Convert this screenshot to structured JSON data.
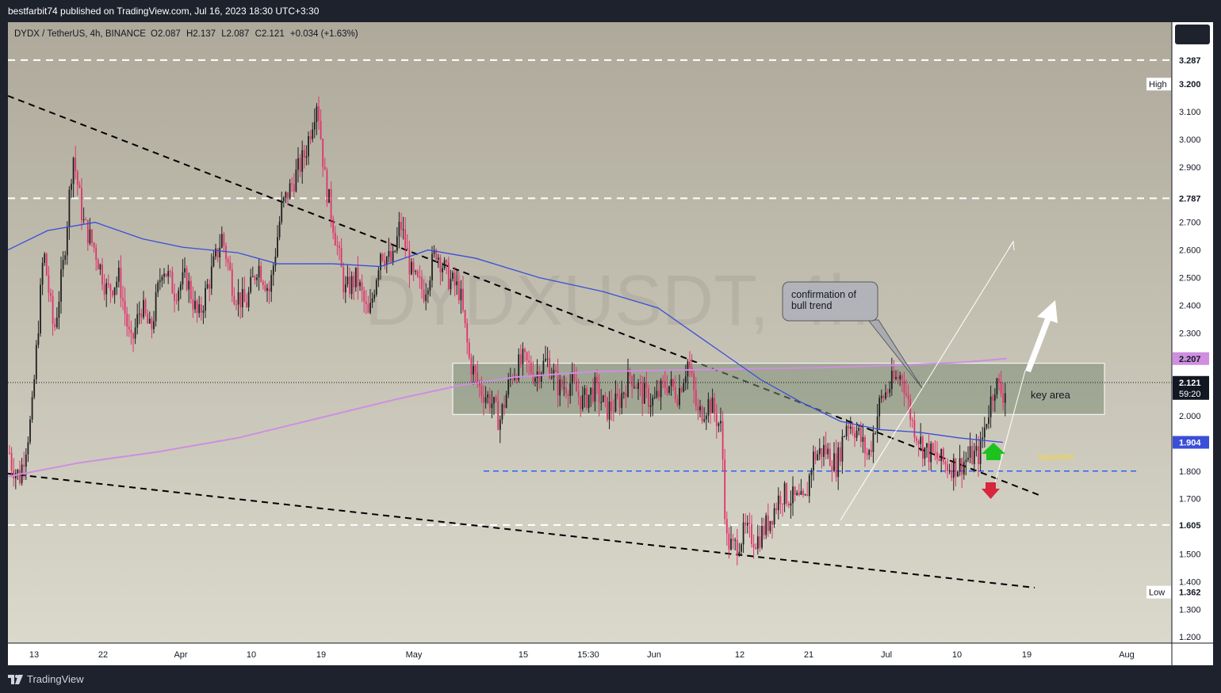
{
  "header": {
    "published": "bestfarbit74 published on TradingView.com, Jul 16, 2023 18:30 UTC+3:30"
  },
  "footer": {
    "brand": "TradingView"
  },
  "colors": {
    "background_top": "#aea99a",
    "background_bottom": "#dad9cc",
    "up_candle": "#1f1f1f",
    "down_candle": "#e0336b",
    "ma_fast": "#3a4ed8",
    "ma_slow": "#cf8ee0",
    "key_area_fill": "#7d8e77",
    "baseline": "#2962ff",
    "current_price": "#131722",
    "arrow_up": "#1ec21e",
    "arrow_down": "#d7263d"
  },
  "chart_data": {
    "type": "candlestick",
    "title": "DYDX / TetherUS, 4h, BINANCE",
    "watermark": "DYDXUSDT, 4h",
    "ohlc_readout": {
      "o_label": "O",
      "open": "2.087",
      "h_label": "H",
      "high": "2.137",
      "l_label": "L",
      "low": "2.087",
      "c_label": "C",
      "close": "2.121",
      "change": "+0.034 (+1.63%)"
    },
    "x_axis_ticks": [
      "13",
      "22",
      "Apr",
      "10",
      "19",
      "May",
      "15",
      "15:30",
      "Jun",
      "12",
      "21",
      "Jul",
      "10",
      "19",
      "Aug"
    ],
    "y_axis_ticks": [
      "3.100",
      "3.000",
      "2.900",
      "2.700",
      "2.600",
      "2.500",
      "2.400",
      "2.300",
      "2.000",
      "1.800",
      "1.700",
      "1.500",
      "1.400",
      "1.300",
      "1.200"
    ],
    "y_range": [
      1.16,
      3.36
    ],
    "price_levels": [
      {
        "value": 3.287,
        "label": "3.287"
      },
      {
        "value": 2.787,
        "label": "2.787"
      },
      {
        "value": 1.605,
        "label": "1.605"
      }
    ],
    "high_marker": {
      "prefix": "High",
      "value": 3.2,
      "label": "3.200"
    },
    "low_marker": {
      "prefix": "Low",
      "value": 1.362,
      "label": "1.362"
    },
    "ma_slow_value": {
      "value": 2.207,
      "label": "2.207"
    },
    "ma_fast_value": {
      "value": 1.904,
      "label": "1.904"
    },
    "current_price": {
      "value": 2.121,
      "label": "2.121",
      "countdown": "59:20"
    },
    "key_area": {
      "label": "key area",
      "top": 2.19,
      "bottom": 2.005
    },
    "baseline": {
      "label": "baseline",
      "value": 1.8
    },
    "callout": {
      "line1": "confirmation of",
      "line2": "bull trend"
    },
    "price_path": [
      [
        0,
        2.05
      ],
      [
        15,
        1.82
      ],
      [
        25,
        1.78
      ],
      [
        40,
        2.0
      ],
      [
        55,
        2.6
      ],
      [
        68,
        2.3
      ],
      [
        80,
        2.55
      ],
      [
        92,
        2.95
      ],
      [
        105,
        2.7
      ],
      [
        120,
        2.6
      ],
      [
        135,
        2.45
      ],
      [
        150,
        2.5
      ],
      [
        165,
        2.25
      ],
      [
        178,
        2.4
      ],
      [
        190,
        2.3
      ],
      [
        205,
        2.55
      ],
      [
        220,
        2.45
      ],
      [
        235,
        2.5
      ],
      [
        250,
        2.35
      ],
      [
        265,
        2.5
      ],
      [
        280,
        2.65
      ],
      [
        295,
        2.45
      ],
      [
        310,
        2.4
      ],
      [
        325,
        2.55
      ],
      [
        340,
        2.45
      ],
      [
        355,
        2.75
      ],
      [
        370,
        2.85
      ],
      [
        385,
        2.95
      ],
      [
        400,
        3.15
      ],
      [
        410,
        2.85
      ],
      [
        420,
        2.7
      ],
      [
        435,
        2.45
      ],
      [
        450,
        2.5
      ],
      [
        465,
        2.35
      ],
      [
        480,
        2.6
      ],
      [
        495,
        2.55
      ],
      [
        505,
        2.7
      ],
      [
        520,
        2.5
      ],
      [
        535,
        2.45
      ],
      [
        550,
        2.6
      ],
      [
        565,
        2.5
      ],
      [
        580,
        2.45
      ],
      [
        592,
        2.2
      ],
      [
        605,
        2.1
      ],
      [
        620,
        2.05
      ],
      [
        630,
        1.98
      ],
      [
        645,
        2.15
      ],
      [
        660,
        2.2
      ],
      [
        675,
        2.15
      ],
      [
        690,
        2.2
      ],
      [
        705,
        2.1
      ],
      [
        720,
        2.12
      ],
      [
        735,
        2.05
      ],
      [
        750,
        2.1
      ],
      [
        765,
        2.02
      ],
      [
        780,
        2.05
      ],
      [
        795,
        2.15
      ],
      [
        810,
        2.08
      ],
      [
        825,
        2.05
      ],
      [
        840,
        2.12
      ],
      [
        855,
        2.08
      ],
      [
        868,
        2.2
      ],
      [
        880,
        2.0
      ],
      [
        895,
        2.05
      ],
      [
        910,
        1.95
      ],
      [
        916,
        1.55
      ],
      [
        925,
        1.52
      ],
      [
        940,
        1.58
      ],
      [
        955,
        1.55
      ],
      [
        970,
        1.62
      ],
      [
        985,
        1.72
      ],
      [
        1000,
        1.7
      ],
      [
        1015,
        1.68
      ],
      [
        1025,
        1.85
      ],
      [
        1040,
        1.88
      ],
      [
        1055,
        1.82
      ],
      [
        1068,
        1.98
      ],
      [
        1080,
        1.95
      ],
      [
        1095,
        1.85
      ],
      [
        1110,
        2.05
      ],
      [
        1125,
        2.12
      ],
      [
        1138,
        2.15
      ],
      [
        1150,
        1.98
      ],
      [
        1165,
        1.88
      ],
      [
        1180,
        1.85
      ],
      [
        1195,
        1.82
      ],
      [
        1210,
        1.82
      ],
      [
        1222,
        1.85
      ],
      [
        1235,
        1.86
      ],
      [
        1245,
        2.0
      ],
      [
        1255,
        2.12
      ],
      [
        1265,
        2.08
      ],
      [
        1272,
        2.12
      ]
    ],
    "ma_fast_path": [
      [
        10,
        2.6
      ],
      [
        60,
        2.67
      ],
      [
        120,
        2.7
      ],
      [
        180,
        2.64
      ],
      [
        230,
        2.61
      ],
      [
        300,
        2.59
      ],
      [
        350,
        2.55
      ],
      [
        420,
        2.55
      ],
      [
        480,
        2.54
      ],
      [
        540,
        2.6
      ],
      [
        600,
        2.57
      ],
      [
        680,
        2.5
      ],
      [
        760,
        2.45
      ],
      [
        830,
        2.39
      ],
      [
        900,
        2.25
      ],
      [
        960,
        2.13
      ],
      [
        1010,
        2.05
      ],
      [
        1060,
        1.98
      ],
      [
        1110,
        1.95
      ],
      [
        1160,
        1.94
      ],
      [
        1210,
        1.92
      ],
      [
        1265,
        1.904
      ]
    ],
    "ma_slow_path": [
      [
        10,
        1.78
      ],
      [
        100,
        1.83
      ],
      [
        200,
        1.87
      ],
      [
        300,
        1.92
      ],
      [
        400,
        1.99
      ],
      [
        500,
        2.06
      ],
      [
        580,
        2.11
      ],
      [
        650,
        2.14
      ],
      [
        750,
        2.16
      ],
      [
        850,
        2.165
      ],
      [
        950,
        2.17
      ],
      [
        1050,
        2.175
      ],
      [
        1150,
        2.185
      ],
      [
        1220,
        2.195
      ],
      [
        1270,
        2.207
      ]
    ]
  }
}
